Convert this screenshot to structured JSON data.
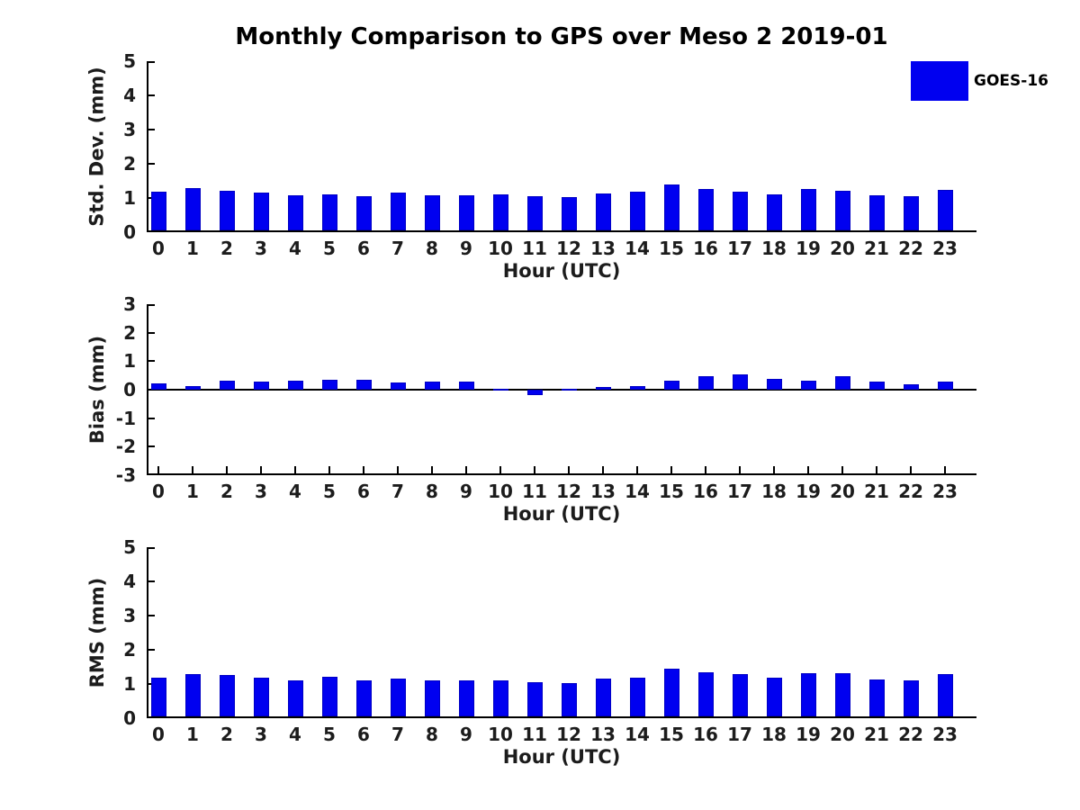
{
  "title": "Monthly Comparison to GPS over Meso 2 2019-01",
  "legend": {
    "label": "GOES-16",
    "position": "outside-top-right"
  },
  "colors": {
    "bar_fill": "#0000f0",
    "bar_edge": "#0000c4",
    "axis": "#000000",
    "text": "#1c1c1c"
  },
  "chart_data": [
    {
      "type": "bar",
      "id": "std-dev",
      "ylabel": "Std. Dev. (mm)",
      "xlabel": "Hour (UTC)",
      "ylim": [
        0,
        5
      ],
      "yticks": [
        0,
        1,
        2,
        3,
        4,
        5
      ],
      "grid": false,
      "categories": [
        "0",
        "1",
        "2",
        "3",
        "4",
        "5",
        "6",
        "7",
        "8",
        "9",
        "10",
        "11",
        "12",
        "13",
        "14",
        "15",
        "16",
        "17",
        "18",
        "19",
        "20",
        "21",
        "22",
        "23"
      ],
      "series": [
        {
          "name": "GOES-16",
          "values": [
            1.14,
            1.23,
            1.17,
            1.11,
            1.02,
            1.06,
            0.99,
            1.11,
            1.02,
            1.02,
            1.06,
            0.99,
            0.98,
            1.08,
            1.14,
            1.34,
            1.2,
            1.13,
            1.05,
            1.21,
            1.17,
            1.02,
            1.01,
            1.19
          ]
        }
      ]
    },
    {
      "type": "bar",
      "id": "bias",
      "ylabel": "Bias (mm)",
      "xlabel": "Hour (UTC)",
      "ylim": [
        -3,
        3
      ],
      "yticks": [
        3,
        2,
        1,
        0,
        -1,
        -2,
        -3
      ],
      "grid": false,
      "categories": [
        "0",
        "1",
        "2",
        "3",
        "4",
        "5",
        "6",
        "7",
        "8",
        "9",
        "10",
        "11",
        "12",
        "13",
        "14",
        "15",
        "16",
        "17",
        "18",
        "19",
        "20",
        "21",
        "22",
        "23"
      ],
      "series": [
        {
          "name": "GOES-16",
          "values": [
            0.22,
            0.13,
            0.33,
            0.3,
            0.33,
            0.36,
            0.36,
            0.25,
            0.3,
            0.29,
            0.02,
            -0.18,
            0.02,
            0.08,
            0.13,
            0.31,
            0.47,
            0.55,
            0.38,
            0.31,
            0.47,
            0.28,
            0.19,
            0.3
          ]
        }
      ]
    },
    {
      "type": "bar",
      "id": "rms",
      "ylabel": "RMS (mm)",
      "xlabel": "Hour (UTC)",
      "ylim": [
        0,
        5
      ],
      "yticks": [
        0,
        1,
        2,
        3,
        4,
        5
      ],
      "grid": false,
      "categories": [
        "0",
        "1",
        "2",
        "3",
        "4",
        "5",
        "6",
        "7",
        "8",
        "9",
        "10",
        "11",
        "12",
        "13",
        "14",
        "15",
        "16",
        "17",
        "18",
        "19",
        "20",
        "21",
        "22",
        "23"
      ],
      "series": [
        {
          "name": "GOES-16",
          "values": [
            1.14,
            1.25,
            1.21,
            1.14,
            1.06,
            1.15,
            1.06,
            1.11,
            1.06,
            1.04,
            1.05,
            1.01,
            0.97,
            1.1,
            1.14,
            1.4,
            1.28,
            1.25,
            1.14,
            1.26,
            1.26,
            1.07,
            1.04,
            1.23
          ]
        }
      ]
    }
  ]
}
